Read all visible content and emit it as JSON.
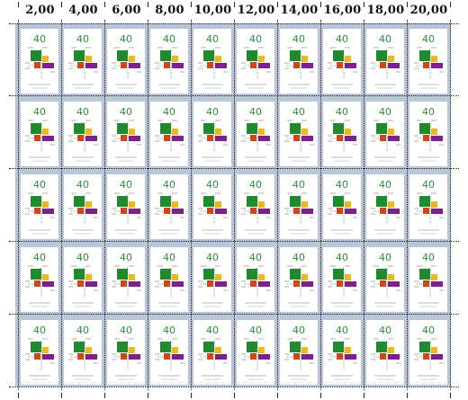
{
  "sheet": {
    "values": [
      "2,00",
      "4,00",
      "6,00",
      "8,00",
      "10,00",
      "12,00",
      "14,00",
      "16,00",
      "18,00",
      "20,00"
    ],
    "rows": 5,
    "columns": 10,
    "stamp": {
      "denomination": "40",
      "colors": {
        "green": "#1f8a2e",
        "yellow": "#f2b51c",
        "red": "#d24519",
        "purple": "#7d1f8f",
        "denomination": "#2e8b3a",
        "background": "#ffffff",
        "margin": "#b9c6d8"
      }
    }
  }
}
